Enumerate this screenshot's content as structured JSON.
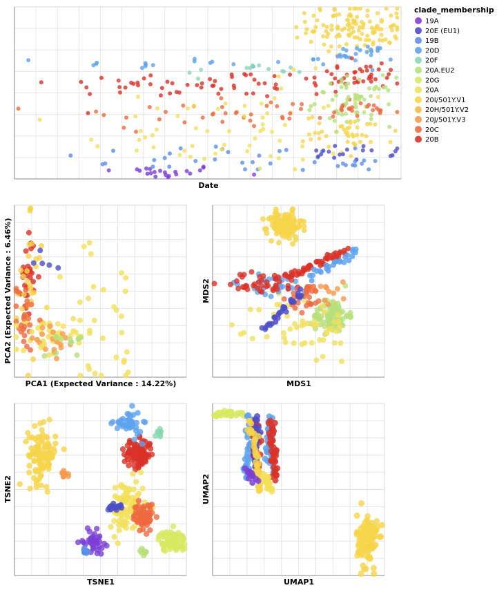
{
  "legend": {
    "title": "clade_membership",
    "entries": [
      {
        "label": "19A",
        "color": "#7B3FD6"
      },
      {
        "label": "20E (EU1)",
        "color": "#4D4DC8"
      },
      {
        "label": "19B",
        "color": "#5B8FE8"
      },
      {
        "label": "20D",
        "color": "#5EA2EE"
      },
      {
        "label": "20F",
        "color": "#86D8B2"
      },
      {
        "label": "20A.EU2",
        "color": "#B7E07A"
      },
      {
        "label": "20G",
        "color": "#D7E862"
      },
      {
        "label": "20A",
        "color": "#F2E05A"
      },
      {
        "label": "20I/501Y.V1",
        "color": "#F6D44A"
      },
      {
        "label": "20H/501Y.V2",
        "color": "#F5BE44"
      },
      {
        "label": "20J/501Y.V3",
        "color": "#F59A4C"
      },
      {
        "label": "20C",
        "color": "#EE6A3E"
      },
      {
        "label": "20B",
        "color": "#D93228"
      }
    ]
  },
  "chart_data": [
    {
      "type": "scatter",
      "xlabel": "Date",
      "ylabel": "",
      "grid": true,
      "clusters": [
        {
          "clade": "19A",
          "cx": 0.37,
          "cy": 0.04,
          "sx": 0.09,
          "sy": 0.02,
          "n": 22
        },
        {
          "clade": "19B",
          "cx": 0.55,
          "cy": 0.12,
          "sx": 0.22,
          "sy": 0.04,
          "n": 26
        },
        {
          "clade": "20A",
          "cx": 0.58,
          "cy": 0.23,
          "sx": 0.2,
          "sy": 0.1,
          "n": 45
        },
        {
          "clade": "20C",
          "cx": 0.55,
          "cy": 0.38,
          "sx": 0.22,
          "sy": 0.06,
          "n": 40
        },
        {
          "clade": "20B",
          "cx": 0.5,
          "cy": 0.55,
          "sx": 0.2,
          "sy": 0.04,
          "n": 55
        },
        {
          "clade": "20D",
          "cx": 0.48,
          "cy": 0.67,
          "sx": 0.18,
          "sy": 0.02,
          "n": 18
        },
        {
          "clade": "20F",
          "cx": 0.6,
          "cy": 0.63,
          "sx": 0.08,
          "sy": 0.02,
          "n": 12
        },
        {
          "clade": "20A",
          "cx": 0.6,
          "cy": 0.45,
          "sx": 0.2,
          "sy": 0.08,
          "n": 20
        },
        {
          "clade": "20I/501Y.V1",
          "cx": 0.88,
          "cy": 0.88,
          "sx": 0.06,
          "sy": 0.07,
          "n": 120
        },
        {
          "clade": "20D",
          "cx": 0.88,
          "cy": 0.72,
          "sx": 0.05,
          "sy": 0.03,
          "n": 25
        },
        {
          "clade": "20B",
          "cx": 0.88,
          "cy": 0.6,
          "sx": 0.06,
          "sy": 0.04,
          "n": 40
        },
        {
          "clade": "20A.EU2",
          "cx": 0.88,
          "cy": 0.45,
          "sx": 0.05,
          "sy": 0.07,
          "n": 60
        },
        {
          "clade": "20C",
          "cx": 0.9,
          "cy": 0.4,
          "sx": 0.05,
          "sy": 0.02,
          "n": 20
        },
        {
          "clade": "20I/501Y.V1",
          "cx": 0.87,
          "cy": 0.27,
          "sx": 0.06,
          "sy": 0.05,
          "n": 40
        },
        {
          "clade": "20E (EU1)",
          "cx": 0.86,
          "cy": 0.15,
          "sx": 0.06,
          "sy": 0.02,
          "n": 18
        },
        {
          "clade": "19B",
          "cx": 0.85,
          "cy": 0.09,
          "sx": 0.05,
          "sy": 0.02,
          "n": 12
        }
      ]
    },
    {
      "type": "scatter",
      "xlabel": "PCA1 (Expected Variance : 14.22%)",
      "ylabel": "PCA2 (Expected Variance : 6.46%)",
      "grid": true,
      "clusters": [
        {
          "clade": "20I/501Y.V1",
          "cx": 0.08,
          "cy": 0.98,
          "sx": 0.01,
          "sy": 0.01,
          "n": 3
        },
        {
          "clade": "20B",
          "cx": 0.08,
          "cy": 0.6,
          "sx": 0.02,
          "sy": 0.12,
          "n": 30
        },
        {
          "clade": "20I/501Y.V1",
          "cx": 0.1,
          "cy": 0.5,
          "sx": 0.04,
          "sy": 0.18,
          "n": 30
        },
        {
          "clade": "20C",
          "cx": 0.06,
          "cy": 0.35,
          "sx": 0.03,
          "sy": 0.1,
          "n": 25
        },
        {
          "clade": "20A",
          "cx": 0.22,
          "cy": 0.22,
          "sx": 0.12,
          "sy": 0.07,
          "n": 40
        },
        {
          "clade": "20J/501Y.V3",
          "cx": 0.2,
          "cy": 0.2,
          "sx": 0.09,
          "sy": 0.06,
          "n": 18
        },
        {
          "clade": "20A",
          "cx": 0.55,
          "cy": 0.06,
          "sx": 0.14,
          "sy": 0.04,
          "n": 10
        },
        {
          "clade": "20A",
          "cx": 0.55,
          "cy": 0.5,
          "sx": 0.22,
          "sy": 0.15,
          "n": 16
        },
        {
          "clade": "20E (EU1)",
          "cx": 0.14,
          "cy": 0.68,
          "sx": 0.06,
          "sy": 0.05,
          "n": 5
        },
        {
          "clade": "20A.EU2",
          "cx": 0.3,
          "cy": 0.22,
          "sx": 0.06,
          "sy": 0.05,
          "n": 12
        }
      ]
    },
    {
      "type": "scatter",
      "xlabel": "MDS1",
      "ylabel": "MDS2",
      "grid": true,
      "clusters": [
        {
          "clade": "20I/501Y.V1",
          "cx": 0.42,
          "cy": 0.88,
          "sx": 0.05,
          "sy": 0.04,
          "n": 120
        },
        {
          "clade": "20A.EU2",
          "cx": 0.69,
          "cy": 0.36,
          "sx": 0.05,
          "sy": 0.05,
          "n": 90
        },
        {
          "clade": "20A",
          "cx": 0.55,
          "cy": 0.28,
          "sx": 0.14,
          "sy": 0.1,
          "n": 50
        },
        {
          "clade": "20D",
          "cx": 0.34,
          "cy": 0.52,
          "sx": 0.15,
          "sy": 0.04,
          "n": 30
        },
        {
          "clade": "20B",
          "cx": 0.3,
          "cy": 0.55,
          "sx": 0.12,
          "sy": 0.03,
          "n": 40
        },
        {
          "clade": "20C",
          "cx": 0.55,
          "cy": 0.46,
          "sx": 0.05,
          "sy": 0.04,
          "n": 30
        },
        {
          "clade": "20J/501Y.V3",
          "cx": 0.7,
          "cy": 0.5,
          "sx": 0.05,
          "sy": 0.04,
          "n": 10
        }
      ],
      "lines": [
        {
          "clade": "20B",
          "from": [
            0.42,
            0.58
          ],
          "to": [
            0.78,
            0.74
          ],
          "n": 45
        },
        {
          "clade": "20D",
          "from": [
            0.56,
            0.58
          ],
          "to": [
            0.85,
            0.74
          ],
          "n": 25
        },
        {
          "clade": "20E (EU1)",
          "from": [
            0.3,
            0.28
          ],
          "to": [
            0.52,
            0.5
          ],
          "n": 30
        }
      ]
    },
    {
      "type": "scatter",
      "xlabel": "TSNE1",
      "ylabel": "TSNE2",
      "grid": true,
      "clusters": [
        {
          "clade": "20I/501Y.V1",
          "cx": 0.16,
          "cy": 0.7,
          "sx": 0.04,
          "sy": 0.08,
          "n": 110
        },
        {
          "clade": "20J/501Y.V3",
          "cx": 0.29,
          "cy": 0.59,
          "sx": 0.01,
          "sy": 0.01,
          "n": 10
        },
        {
          "clade": "20B",
          "cx": 0.72,
          "cy": 0.71,
          "sx": 0.04,
          "sy": 0.04,
          "n": 110
        },
        {
          "clade": "20D",
          "cx": 0.66,
          "cy": 0.88,
          "sx": 0.04,
          "sy": 0.04,
          "n": 40
        },
        {
          "clade": "20F",
          "cx": 0.85,
          "cy": 0.83,
          "sx": 0.01,
          "sy": 0.01,
          "n": 10
        },
        {
          "clade": "20A",
          "cx": 0.66,
          "cy": 0.4,
          "sx": 0.05,
          "sy": 0.08,
          "n": 100
        },
        {
          "clade": "20C",
          "cx": 0.75,
          "cy": 0.34,
          "sx": 0.03,
          "sy": 0.04,
          "n": 60
        },
        {
          "clade": "20E (EU1)",
          "cx": 0.58,
          "cy": 0.4,
          "sx": 0.02,
          "sy": 0.01,
          "n": 20
        },
        {
          "clade": "19A",
          "cx": 0.46,
          "cy": 0.2,
          "sx": 0.03,
          "sy": 0.03,
          "n": 40
        },
        {
          "clade": "19B",
          "cx": 0.41,
          "cy": 0.15,
          "sx": 0.01,
          "sy": 0.02,
          "n": 12
        },
        {
          "clade": "20G",
          "cx": 0.92,
          "cy": 0.2,
          "sx": 0.04,
          "sy": 0.03,
          "n": 70
        },
        {
          "clade": "20A.EU2",
          "cx": 0.75,
          "cy": 0.14,
          "sx": 0.01,
          "sy": 0.01,
          "n": 8
        }
      ]
    },
    {
      "type": "scatter",
      "xlabel": "UMAP1",
      "ylabel": "UMAP2",
      "grid": true,
      "clusters": [
        {
          "clade": "20I/501Y.V1",
          "cx": 0.9,
          "cy": 0.2,
          "sx": 0.03,
          "sy": 0.08,
          "n": 120
        },
        {
          "clade": "20G",
          "cx": 0.1,
          "cy": 0.94,
          "sx": 0.05,
          "sy": 0.01,
          "n": 30
        }
      ],
      "lines": [
        {
          "clade": "20D",
          "from": [
            0.22,
            0.93
          ],
          "to": [
            0.2,
            0.56
          ],
          "n": 40
        },
        {
          "clade": "20B",
          "from": [
            0.25,
            0.9
          ],
          "to": [
            0.26,
            0.6
          ],
          "n": 40
        },
        {
          "clade": "20E (EU1)",
          "from": [
            0.26,
            0.92
          ],
          "to": [
            0.24,
            0.6
          ],
          "n": 25
        },
        {
          "clade": "20I/501Y.V1",
          "from": [
            0.22,
            0.9
          ],
          "to": [
            0.28,
            0.48
          ],
          "n": 40
        },
        {
          "clade": "20D",
          "from": [
            0.33,
            0.92
          ],
          "to": [
            0.34,
            0.62
          ],
          "n": 35
        },
        {
          "clade": "20B",
          "from": [
            0.34,
            0.9
          ],
          "to": [
            0.37,
            0.56
          ],
          "n": 40
        },
        {
          "clade": "20A",
          "from": [
            0.3,
            0.58
          ],
          "to": [
            0.34,
            0.5
          ],
          "n": 20
        },
        {
          "clade": "19A",
          "from": [
            0.2,
            0.62
          ],
          "to": [
            0.24,
            0.55
          ],
          "n": 12
        }
      ]
    }
  ]
}
